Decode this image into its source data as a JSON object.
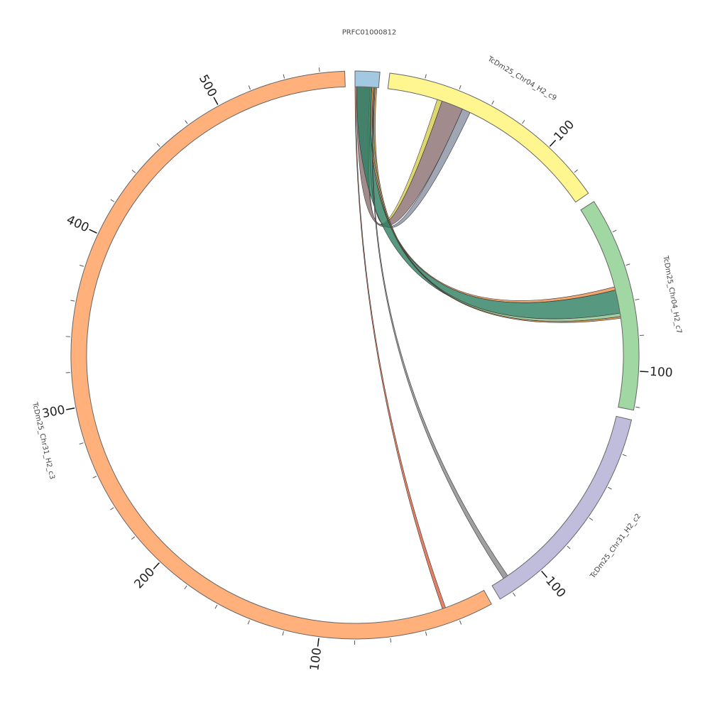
{
  "chart_data": {
    "type": "chord",
    "segments": [
      {
        "name": "PRFC01000812",
        "length": 14,
        "color": "#a3c9e2",
        "ticks": []
      },
      {
        "name": "TcDm25_Chr04_H2_c9",
        "length": 134,
        "color": "#fff68f",
        "ticks": [
          100
        ]
      },
      {
        "name": "TcDm25_Chr04_H2_c7",
        "length": 122,
        "color": "#a1d7a2",
        "ticks": [
          100
        ]
      },
      {
        "name": "TcDm25_Chr31_H2_c2",
        "length": 128,
        "color": "#bfbcdc",
        "ticks": [
          100
        ]
      },
      {
        "name": "TcDm25_Chr31_H2_c3",
        "length": 574,
        "color": "#ffb07b",
        "ticks": [
          100,
          200,
          300,
          400,
          500
        ]
      }
    ],
    "links": [
      {
        "source": "PRFC01000812",
        "source_range": [
          9,
          10
        ],
        "target": "TcDm25_Chr04_H2_c9",
        "target_range": [
          30,
          33
        ],
        "color": "#d6cc4a"
      },
      {
        "source": "PRFC01000812",
        "source_range": [
          1,
          9
        ],
        "target": "TcDm25_Chr04_H2_c9",
        "target_range": [
          33,
          46
        ],
        "color": "#8b6e70"
      },
      {
        "source": "PRFC01000812",
        "source_range": [
          10,
          11
        ],
        "target": "TcDm25_Chr04_H2_c9",
        "target_range": [
          46,
          51
        ],
        "color": "#8a90a3"
      },
      {
        "source": "PRFC01000812",
        "source_range": [
          10,
          11
        ],
        "target": "TcDm25_Chr04_H2_c7",
        "target_range": [
          50,
          52
        ],
        "color": "#ee8e4c"
      },
      {
        "source": "PRFC01000812",
        "source_range": [
          1,
          10
        ],
        "target": "TcDm25_Chr04_H2_c7",
        "target_range": [
          52,
          66
        ],
        "color": "#2d7e62"
      },
      {
        "source": "PRFC01000812",
        "source_range": [
          11,
          12
        ],
        "target": "TcDm25_Chr04_H2_c7",
        "target_range": [
          66,
          68
        ],
        "color": "#8fbf8a"
      },
      {
        "source": "PRFC01000812",
        "source_range": [
          12,
          13
        ],
        "target": "TcDm25_Chr04_H2_c7",
        "target_range": [
          68,
          69
        ],
        "color": "#d98a3a"
      },
      {
        "source": "PRFC01000812",
        "source_range": [
          11.5,
          12
        ],
        "target": "TcDm25_Chr31_H2_c2",
        "target_range": [
          117,
          120
        ],
        "color": "#888888"
      },
      {
        "source": "PRFC01000812",
        "source_range": [
          0,
          0.5
        ],
        "target": "TcDm25_Chr31_H2_c3",
        "target_range": [
          25,
          27
        ],
        "color": "#e0603f"
      }
    ]
  }
}
